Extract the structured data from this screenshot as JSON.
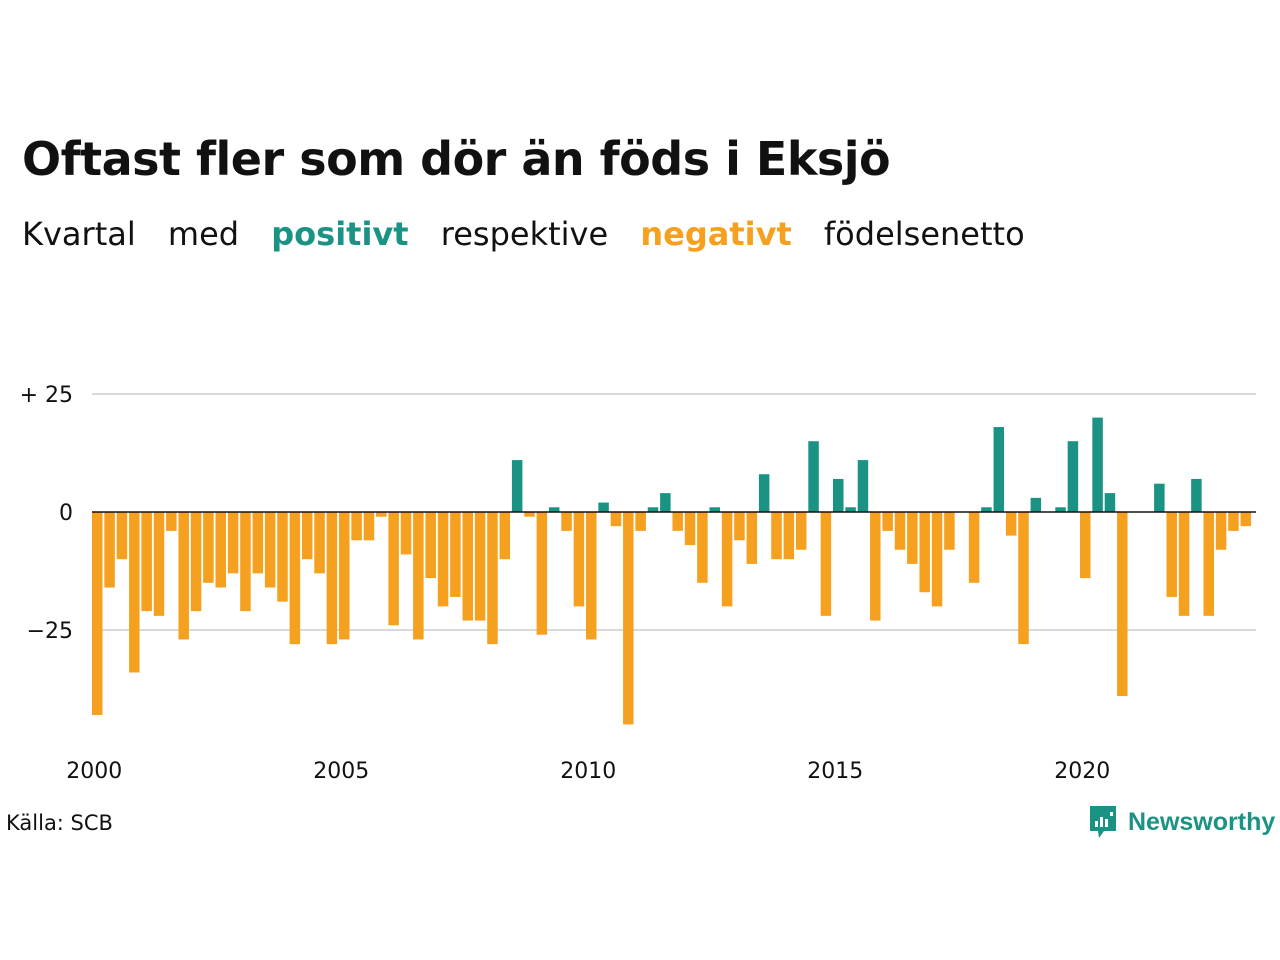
{
  "title": "Oftast fler som dör än föds i Eksjö",
  "subtitle": {
    "part1": "Kvartal",
    "part2": "med",
    "positive_word": "positivt",
    "part3": "respektive",
    "negative_word": "negativt",
    "part4": "födelsenetto"
  },
  "source": "Källa: SCB",
  "logo_text": "Newsworthy",
  "colors": {
    "positive": "#1a9384",
    "negative": "#f5a11f",
    "grid": "#d9d9d9",
    "text": "#111111"
  },
  "chart_data": {
    "type": "bar",
    "x_start": "2000 Q1",
    "ylim": [
      -45,
      30
    ],
    "yticks": [
      25,
      0,
      -25
    ],
    "ytick_labels": [
      "+ 25",
      "0",
      "−25"
    ],
    "xticks": [
      2000,
      2005,
      2010,
      2015,
      2020
    ],
    "xtick_labels": [
      "2000",
      "2005",
      "2010",
      "2015",
      "2020"
    ],
    "values": [
      -43,
      -16,
      -10,
      -34,
      -21,
      -22,
      -4,
      -27,
      -21,
      -15,
      -16,
      -13,
      -21,
      -13,
      -16,
      -19,
      -28,
      -10,
      -13,
      -28,
      -27,
      -6,
      -6,
      -1,
      -24,
      -9,
      -27,
      -14,
      -20,
      -18,
      -23,
      -23,
      -28,
      -10,
      11,
      -1,
      -26,
      1,
      -4,
      -20,
      -27,
      2,
      -3,
      -45,
      -4,
      1,
      4,
      -4,
      -7,
      -15,
      1,
      -20,
      -6,
      -11,
      8,
      -10,
      -10,
      -8,
      15,
      -22,
      7,
      1,
      11,
      -23,
      -4,
      -8,
      -11,
      -17,
      -20,
      -8,
      0,
      -15,
      1,
      18,
      -5,
      -28,
      3,
      0,
      1,
      15,
      -14,
      20,
      4,
      -39,
      0,
      0,
      6,
      -18,
      -22,
      7,
      -22,
      -8,
      -4,
      -3
    ]
  }
}
